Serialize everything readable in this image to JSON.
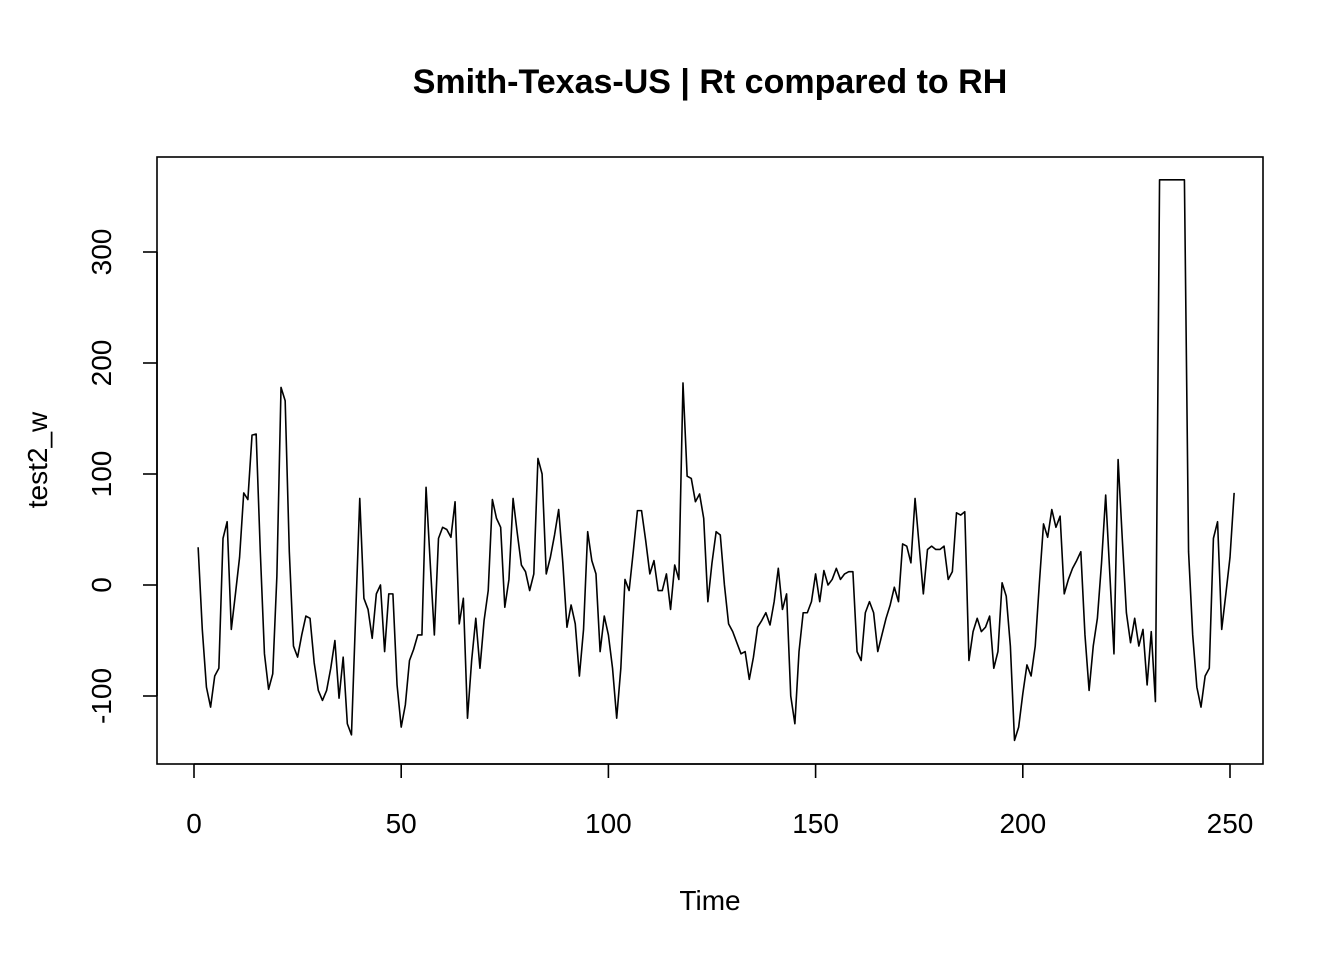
{
  "chart_data": {
    "type": "line",
    "title": "Smith-Texas-US | Rt compared to RH",
    "xlabel": "Time",
    "ylabel": "test2_w",
    "xlim": [
      1,
      248
    ],
    "ylim": [
      -140,
      365
    ],
    "xticks": [
      0,
      50,
      100,
      150,
      200,
      250
    ],
    "yticks": [
      -100,
      0,
      100,
      200,
      300
    ],
    "grid": false,
    "series": [
      {
        "name": "test2_w",
        "x_start": 1,
        "values": [
          34,
          -40,
          -92,
          -110,
          -82,
          -75,
          42,
          57,
          -40,
          -8,
          25,
          83,
          77,
          135,
          136,
          30,
          -62,
          -94,
          -80,
          8,
          178,
          166,
          30,
          -55,
          -65,
          -45,
          -28,
          -30,
          -70,
          -95,
          -104,
          -95,
          -75,
          -50,
          -102,
          -65,
          -125,
          -135,
          -28,
          78,
          -12,
          -22,
          -48,
          -8,
          0,
          -60,
          -8,
          -8,
          -90,
          -128,
          -108,
          -68,
          -58,
          -45,
          -45,
          88,
          20,
          -45,
          42,
          52,
          50,
          43,
          75,
          -35,
          -12,
          -120,
          -68,
          -30,
          -75,
          -32,
          -5,
          77,
          60,
          52,
          -20,
          5,
          78,
          47,
          18,
          12,
          -5,
          10,
          114,
          100,
          10,
          25,
          45,
          68,
          20,
          -38,
          -18,
          -35,
          -82,
          -40,
          48,
          22,
          10,
          -60,
          -28,
          -45,
          -75,
          -120,
          -75,
          5,
          -5,
          30,
          67,
          67,
          40,
          10,
          22,
          -5,
          -5,
          10,
          -22,
          18,
          5,
          182,
          98,
          96,
          75,
          82,
          60,
          -15,
          20,
          48,
          45,
          0,
          -35,
          -42,
          -52,
          -62,
          -60,
          -85,
          -65,
          -38,
          -32,
          -25,
          -36,
          -15,
          15,
          -22,
          -8,
          -100,
          -125,
          -60,
          -25,
          -25,
          -15,
          10,
          -15,
          13,
          0,
          5,
          15,
          5,
          10,
          12,
          12,
          -60,
          -68,
          -25,
          -15,
          -25,
          -60,
          -45,
          -30,
          -18,
          -2,
          -15,
          37,
          35,
          20,
          78,
          35,
          -8,
          32,
          35,
          32,
          32,
          35,
          5,
          12,
          65,
          63,
          66,
          -68,
          -42,
          -30,
          -42,
          -38,
          -28,
          -75,
          -60,
          2,
          -10,
          -55,
          -140,
          -128,
          -98,
          -72,
          -82,
          -55,
          2,
          55,
          43,
          68,
          52,
          62,
          -8,
          5,
          15,
          22,
          30,
          -45,
          -95,
          -55,
          -30,
          20,
          81,
          10,
          -62,
          113,
          42,
          -25,
          -52,
          -30,
          -55,
          -40,
          -90,
          -42,
          -105,
          365,
          365,
          365,
          365,
          365,
          365,
          365,
          30,
          -45,
          -92,
          -110,
          -82,
          -75,
          42,
          57,
          -40,
          -8,
          25,
          83
        ]
      }
    ]
  }
}
